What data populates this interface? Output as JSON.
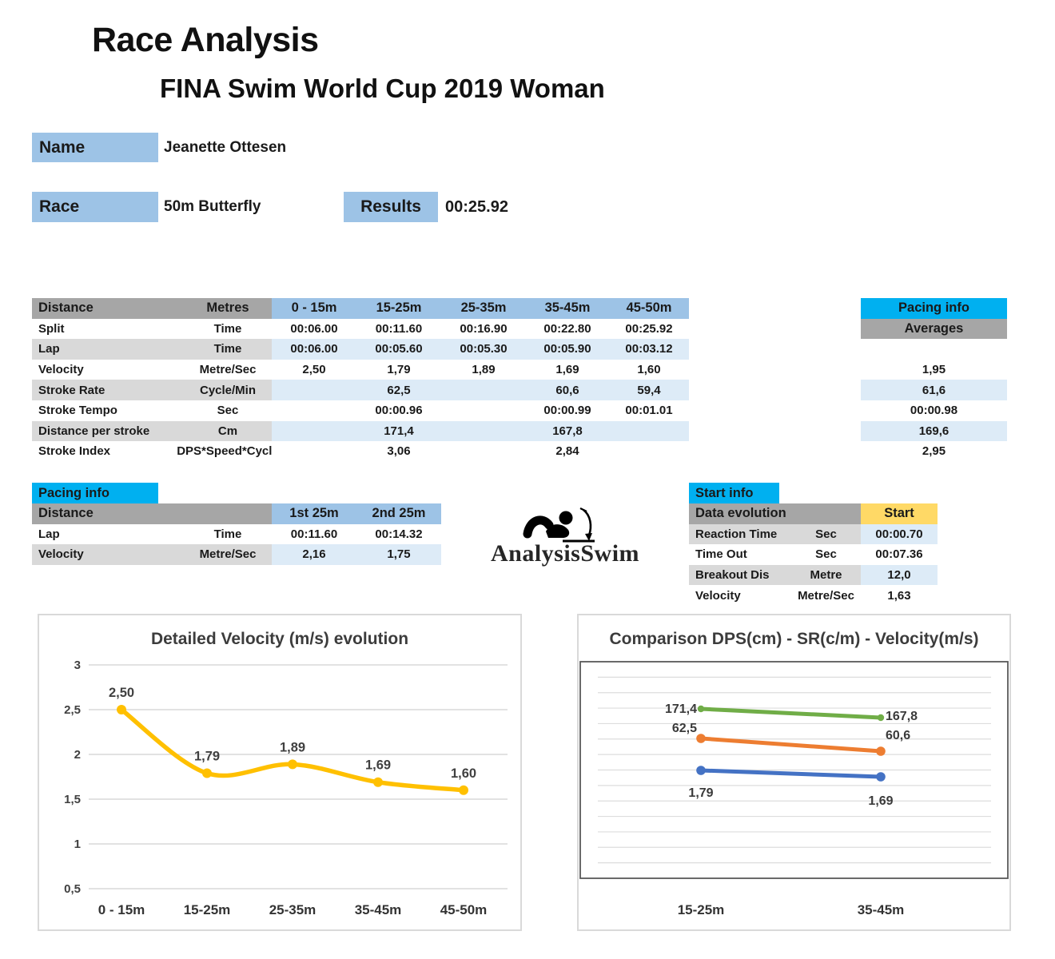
{
  "header": {
    "title": "Race Analysis",
    "subtitle": "FINA Swim World Cup 2019 Woman"
  },
  "athlete": {
    "name_label": "Name",
    "name": "Jeanette Ottesen",
    "race_label": "Race",
    "race": "50m Butterfly",
    "results_label": "Results",
    "results": "00:25.92"
  },
  "main_table": {
    "header": {
      "col1": "Distance",
      "col2": "Metres",
      "columns": [
        "0 - 15m",
        "15-25m",
        "25-35m",
        "35-45m",
        "45-50m"
      ]
    },
    "rows": [
      {
        "label": "Split",
        "unit": "Time",
        "values": [
          "00:06.00",
          "00:11.60",
          "00:16.90",
          "00:22.80",
          "00:25.92"
        ],
        "average": ""
      },
      {
        "label": "Lap",
        "unit": "Time",
        "values": [
          "00:06.00",
          "00:05.60",
          "00:05.30",
          "00:05.90",
          "00:03.12"
        ],
        "average": ""
      },
      {
        "label": "Velocity",
        "unit": "Metre/Sec",
        "values": [
          "2,50",
          "1,79",
          "1,89",
          "1,69",
          "1,60"
        ],
        "average": "1,95"
      },
      {
        "label": "Stroke Rate",
        "unit": "Cycle/Min",
        "values": [
          "",
          "62,5",
          "",
          "60,6",
          "59,4"
        ],
        "average": "61,6"
      },
      {
        "label": "Stroke Tempo",
        "unit": "Sec",
        "values": [
          "",
          "00:00.96",
          "",
          "00:00.99",
          "00:01.01"
        ],
        "average": "00:00.98"
      },
      {
        "label": "Distance per stroke",
        "unit": "Cm",
        "values": [
          "",
          "171,4",
          "",
          "167,8",
          ""
        ],
        "average": "169,6"
      },
      {
        "label": "Stroke Index",
        "unit": "DPS*Speed*Cycle",
        "values": [
          "",
          "3,06",
          "",
          "2,84",
          ""
        ],
        "average": "2,95"
      }
    ],
    "averages_header": {
      "title": "Pacing info",
      "subtitle": "Averages"
    }
  },
  "pacing_table": {
    "title": "Pacing info",
    "header": {
      "col1": "Distance",
      "columns": [
        "1st 25m",
        "2nd 25m"
      ]
    },
    "rows": [
      {
        "label": "Lap",
        "unit": "Time",
        "values": [
          "00:11.60",
          "00:14.32"
        ]
      },
      {
        "label": "Velocity",
        "unit": "Metre/Sec",
        "values": [
          "2,16",
          "1,75"
        ]
      }
    ]
  },
  "start_table": {
    "title": "Start info",
    "header": {
      "col1": "Data evolution",
      "col2": "Start"
    },
    "rows": [
      {
        "label": "Reaction Time",
        "unit": "Sec",
        "value": "00:00.70"
      },
      {
        "label": "Time Out",
        "unit": "Sec",
        "value": "00:07.36"
      },
      {
        "label": "Breakout Dis",
        "unit": "Metre",
        "value": "12,0"
      },
      {
        "label": "Velocity",
        "unit": "Metre/Sec",
        "value": "1,63"
      }
    ]
  },
  "logo": {
    "icon": "swimmer-icon",
    "text": "AnalysisSwim"
  },
  "chart_data": [
    {
      "type": "line",
      "title": "Detailed Velocity (m/s)  evolution",
      "categories": [
        "0 - 15m",
        "15-25m",
        "25-35m",
        "35-45m",
        "45-50m"
      ],
      "series": [
        {
          "name": "Velocity (m/s)",
          "values": [
            2.5,
            1.79,
            1.89,
            1.69,
            1.6
          ],
          "color": "#FFC000"
        }
      ],
      "data_labels": [
        "2,50",
        "1,79",
        "1,89",
        "1,69",
        "1,60"
      ],
      "ylim": [
        0.5,
        3
      ],
      "yticks": [
        "3",
        "2,5",
        "2",
        "1,5",
        "1",
        "0,5"
      ],
      "grid": true,
      "legend": "none",
      "smooth": true
    },
    {
      "type": "line",
      "title": "Comparison DPS(cm) - SR(c/m) - Velocity(m/s)",
      "categories": [
        "15-25m",
        "35-45m"
      ],
      "series": [
        {
          "name": "DPS (cm)",
          "values": [
            171.4,
            167.8
          ],
          "labels": [
            "171,4",
            "167,8"
          ],
          "color": "#70AD47"
        },
        {
          "name": "SR (c/m)",
          "values": [
            62.5,
            60.6
          ],
          "labels": [
            "62,5",
            "60,6"
          ],
          "color": "#ED7D31"
        },
        {
          "name": "Velocity (m/s)",
          "values": [
            1.79,
            1.69
          ],
          "labels": [
            "1,79",
            "1,69"
          ],
          "color": "#4472C4"
        }
      ],
      "grid": true,
      "legend": "none"
    }
  ],
  "colors": {
    "cyan_header": "#00B0F0",
    "gray_header": "#A6A6A6",
    "blue_header": "#9DC3E6",
    "light_blue_row": "#DDEBF7",
    "light_gray_row": "#D9D9D9",
    "start_yellow": "#FFD966",
    "velocity_line": "#FFC000",
    "dps_line": "#70AD47",
    "sr_line": "#ED7D31",
    "velocity_comp_line": "#4472C4"
  }
}
